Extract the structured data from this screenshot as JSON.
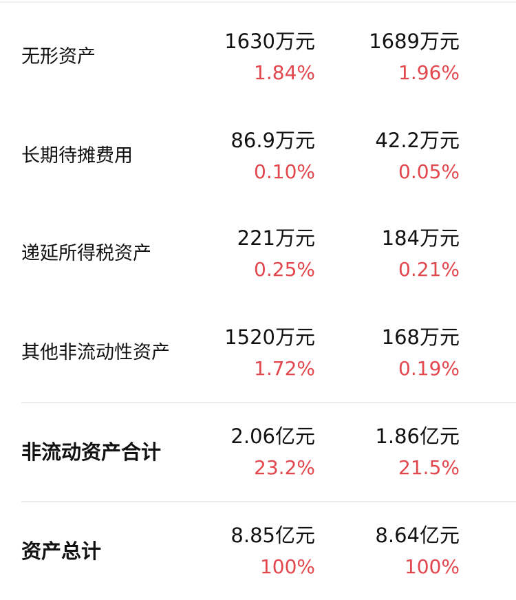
{
  "rows": [
    {
      "label": "无形资产",
      "col1_value": "1630万元",
      "col1_pct": "1.84%",
      "col2_value": "1689万元",
      "col2_pct": "1.96%"
    },
    {
      "label": "长期待摊费用",
      "col1_value": "86.9万元",
      "col1_pct": "0.10%",
      "col2_value": "42.2万元",
      "col2_pct": "0.05%"
    },
    {
      "label": "递延所得税资产",
      "col1_value": "221万元",
      "col1_pct": "0.25%",
      "col2_value": "184万元",
      "col2_pct": "0.21%"
    },
    {
      "label": "其他非流动性资产",
      "col1_value": "1520万元",
      "col1_pct": "1.72%",
      "col2_value": "168万元",
      "col2_pct": "0.19%"
    },
    {
      "label": "非流动资产合计",
      "col1_value": "2.06亿元",
      "col1_pct": "23.2%",
      "col2_value": "1.86亿元",
      "col2_pct": "21.5%"
    },
    {
      "label": "资产总计",
      "col1_value": "8.85亿元",
      "col1_pct": "100%",
      "col2_value": "8.64亿元",
      "col2_pct": "100%"
    }
  ],
  "colors": {
    "percent": "#e2474d",
    "text": "#111111"
  }
}
